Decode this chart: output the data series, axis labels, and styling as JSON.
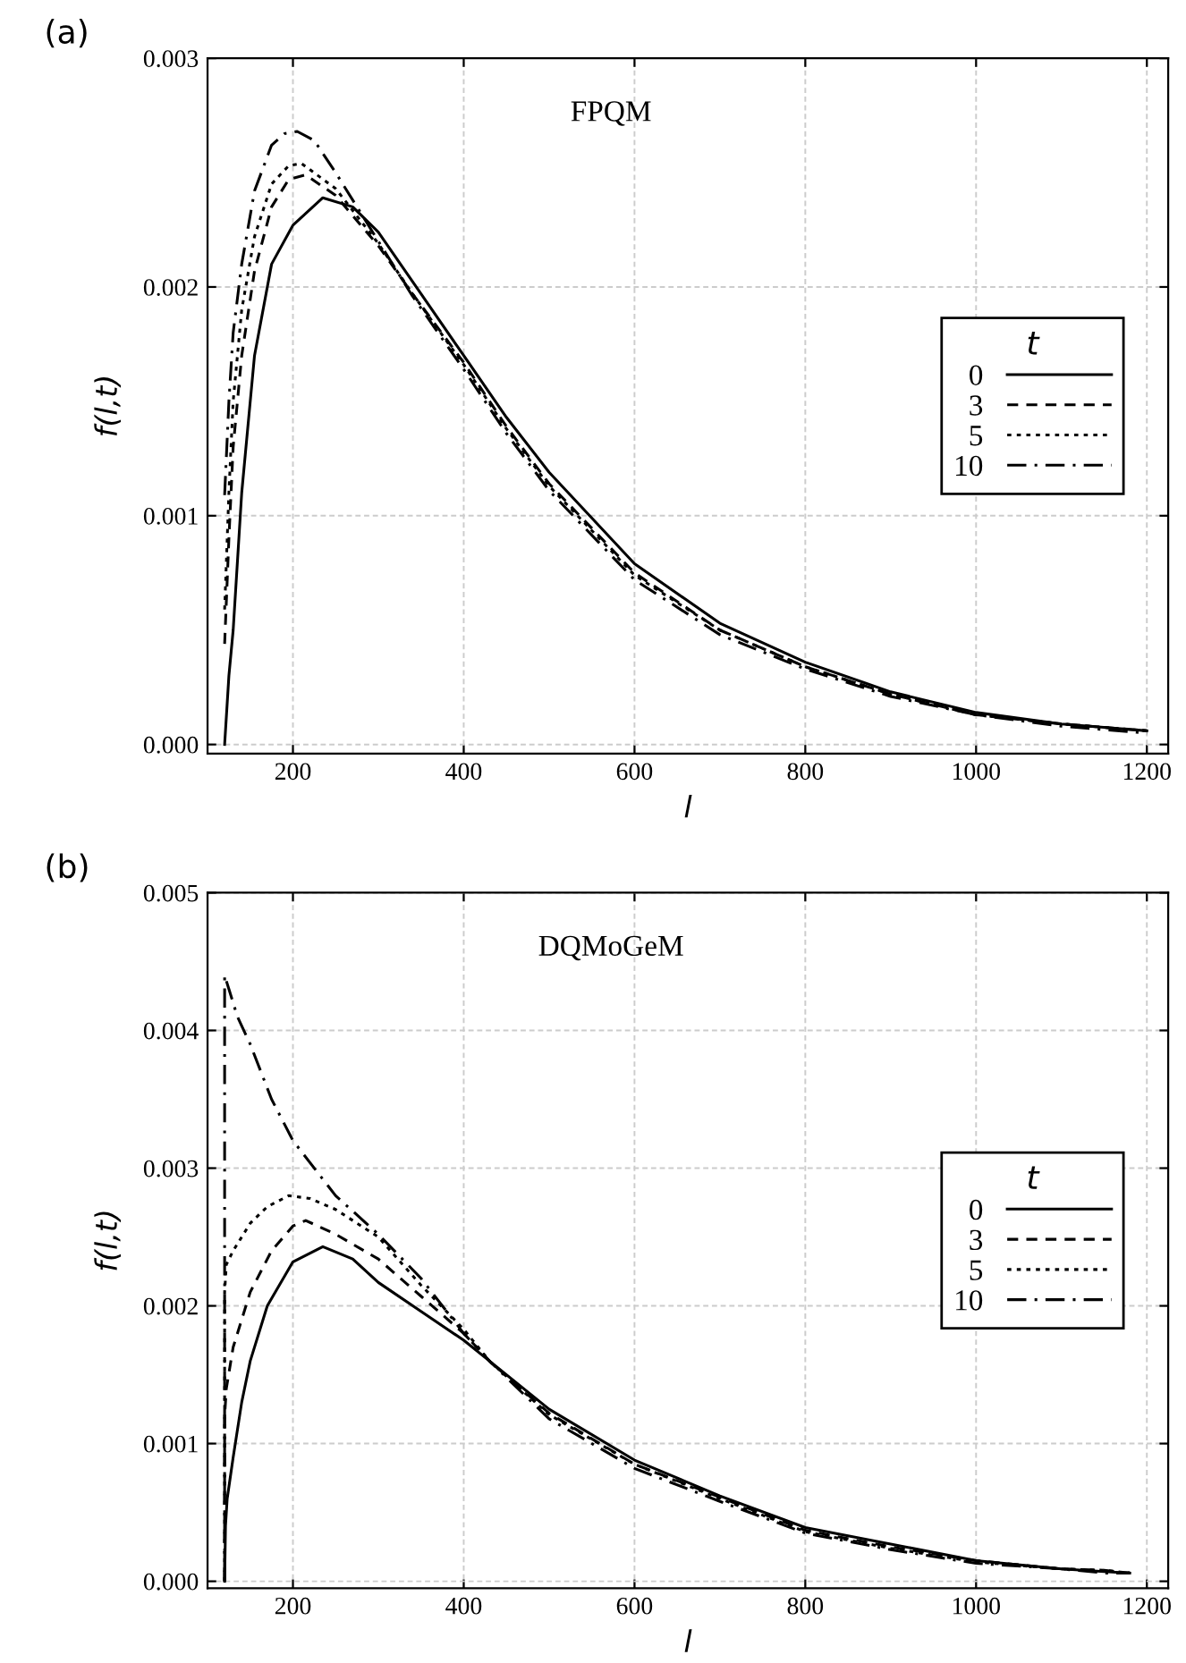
{
  "chart_data": [
    {
      "type": "line",
      "title": "(a)",
      "xlabel": "l",
      "ylabel": "f(l,t)",
      "legend_title": "t",
      "annotations": [
        "FPQM"
      ],
      "xlim": [
        100,
        1225
      ],
      "xticks": [
        200,
        400,
        600,
        800,
        1000,
        1200
      ],
      "ylim": [
        -4e-05,
        0.003
      ],
      "yticks": [
        {
          "value": 0,
          "label": "0.000"
        },
        {
          "value": 0.001,
          "label": "0.001"
        },
        {
          "value": 0.002,
          "label": "0.002"
        },
        {
          "value": 0.003,
          "label": "0.003"
        }
      ],
      "grid": true,
      "legend": "right",
      "series": [
        {
          "name": "0",
          "color": "#000000",
          "line_style": "solid",
          "x": [
            120,
            125,
            130,
            140,
            155,
            175,
            200,
            235,
            270,
            300,
            350,
            400,
            450,
            500,
            600,
            700,
            800,
            900,
            1000,
            1100,
            1200
          ],
          "values": [
            0,
            0.0003,
            0.0005,
            0.0011,
            0.0017,
            0.0021,
            0.00227,
            0.00239,
            0.00235,
            0.00224,
            0.00197,
            0.0017,
            0.00143,
            0.00119,
            0.00079,
            0.00053,
            0.00036,
            0.00023,
            0.00014,
            9e-05,
            6e-05
          ]
        },
        {
          "name": "3",
          "color": "#000000",
          "line_style": "dashed",
          "x": [
            120,
            125,
            130,
            140,
            155,
            175,
            195,
            215,
            250,
            300,
            340,
            400,
            450,
            500,
            600,
            700,
            800,
            900,
            1000,
            1100,
            1200
          ],
          "values": [
            0.00044,
            0.0009,
            0.0013,
            0.0017,
            0.00207,
            0.00235,
            0.00247,
            0.00249,
            0.0024,
            0.00218,
            0.00197,
            0.00167,
            0.00139,
            0.00114,
            0.00075,
            0.0005,
            0.00034,
            0.00022,
            0.00013,
            9e-05,
            6e-05
          ]
        },
        {
          "name": "5",
          "color": "#000000",
          "line_style": "dotted",
          "x": [
            120,
            125,
            130,
            140,
            155,
            175,
            195,
            210,
            250,
            300,
            340,
            400,
            450,
            500,
            600,
            700,
            800,
            900,
            1000,
            1100,
            1200
          ],
          "values": [
            0.00059,
            0.0011,
            0.0015,
            0.0019,
            0.00222,
            0.00245,
            0.00253,
            0.00254,
            0.00243,
            0.00219,
            0.00197,
            0.00166,
            0.00138,
            0.00113,
            0.00074,
            0.0005,
            0.00034,
            0.00022,
            0.00013,
            9e-05,
            6e-05
          ]
        },
        {
          "name": "10",
          "color": "#000000",
          "line_style": "dashdot",
          "x": [
            120,
            125,
            130,
            140,
            155,
            175,
            190,
            205,
            225,
            250,
            300,
            340,
            400,
            450,
            500,
            600,
            700,
            800,
            900,
            1000,
            1100,
            1200
          ],
          "values": [
            0.00109,
            0.0015,
            0.0018,
            0.0021,
            0.00242,
            0.00262,
            0.00267,
            0.00268,
            0.00264,
            0.0025,
            0.0022,
            0.00196,
            0.00164,
            0.00136,
            0.00111,
            0.00072,
            0.00048,
            0.00033,
            0.00021,
            0.00013,
            8e-05,
            5e-05
          ]
        }
      ]
    },
    {
      "type": "line",
      "title": "(b)",
      "xlabel": "l",
      "ylabel": "f(l,t)",
      "legend_title": "t",
      "annotations": [
        "DQMoGeM"
      ],
      "xlim": [
        100,
        1225
      ],
      "xticks": [
        200,
        400,
        600,
        800,
        1000,
        1200
      ],
      "ylim": [
        -5e-05,
        0.005
      ],
      "yticks": [
        {
          "value": 0,
          "label": "0.000"
        },
        {
          "value": 0.001,
          "label": "0.001"
        },
        {
          "value": 0.002,
          "label": "0.002"
        },
        {
          "value": 0.003,
          "label": "0.003"
        },
        {
          "value": 0.004,
          "label": "0.004"
        },
        {
          "value": 0.005,
          "label": "0.005"
        }
      ],
      "grid": true,
      "legend": "right",
      "series": [
        {
          "name": "0",
          "color": "#000000",
          "line_style": "solid",
          "x": [
            120,
            121,
            123,
            130,
            140,
            150,
            170,
            200,
            235,
            270,
            300,
            350,
            400,
            430,
            500,
            600,
            700,
            800,
            900,
            1000,
            1100,
            1150,
            1180
          ],
          "values": [
            0,
            0.0004,
            0.0006,
            0.0009,
            0.0013,
            0.0016,
            0.002,
            0.00232,
            0.00243,
            0.00234,
            0.00217,
            0.00196,
            0.00175,
            0.0016,
            0.00125,
            0.00088,
            0.00062,
            0.00039,
            0.00027,
            0.00015,
            9e-05,
            7e-05,
            6e-05
          ]
        },
        {
          "name": "3",
          "color": "#000000",
          "line_style": "dashed",
          "x": [
            120,
            120,
            122,
            130,
            150,
            175,
            200,
            215,
            250,
            300,
            350,
            400,
            430,
            500,
            600,
            700,
            800,
            900,
            1000,
            1100,
            1150,
            1180
          ],
          "values": [
            0,
            0.0012,
            0.0014,
            0.0017,
            0.0021,
            0.0024,
            0.00258,
            0.00262,
            0.00252,
            0.00234,
            0.00207,
            0.0018,
            0.0016,
            0.00122,
            0.00085,
            0.00061,
            0.00037,
            0.00025,
            0.00015,
            9e-05,
            8e-05,
            6e-05
          ]
        },
        {
          "name": "5",
          "color": "#000000",
          "line_style": "dotted",
          "x": [
            120,
            120,
            122,
            130,
            150,
            170,
            195,
            220,
            250,
            300,
            350,
            400,
            430,
            500,
            600,
            700,
            800,
            900,
            1000,
            1100,
            1150,
            1180
          ],
          "values": [
            0,
            0.0021,
            0.0023,
            0.0024,
            0.0026,
            0.00272,
            0.0028,
            0.00278,
            0.0027,
            0.0025,
            0.00215,
            0.00183,
            0.0016,
            0.00121,
            0.00085,
            0.0006,
            0.00036,
            0.00024,
            0.00014,
            9e-05,
            8e-05,
            6e-05
          ]
        },
        {
          "name": "10",
          "color": "#000000",
          "line_style": "dashdot",
          "x": [
            120,
            120,
            125,
            135,
            150,
            175,
            200,
            250,
            300,
            350,
            400,
            430,
            500,
            600,
            700,
            800,
            900,
            1000,
            1100,
            1150,
            1180
          ],
          "values": [
            0,
            0.0044,
            0.0043,
            0.0041,
            0.0039,
            0.0035,
            0.0032,
            0.0028,
            0.00252,
            0.0022,
            0.0018,
            0.0016,
            0.00118,
            0.00082,
            0.00058,
            0.00035,
            0.00023,
            0.00013,
            9e-05,
            6e-05,
            6e-05
          ]
        }
      ]
    }
  ]
}
